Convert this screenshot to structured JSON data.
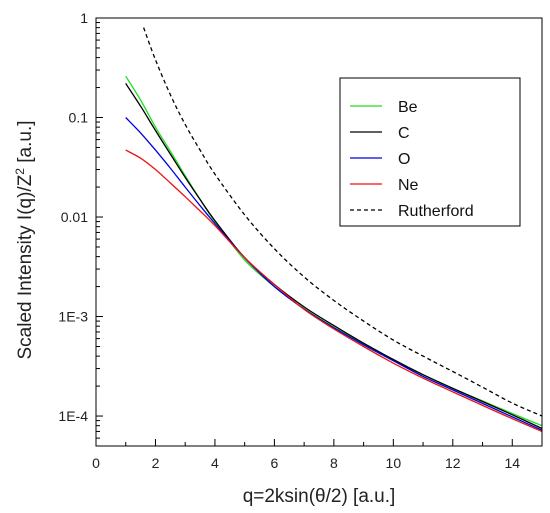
{
  "chart_data": {
    "type": "line",
    "xlabel": "q=2ksin(θ/2) [a.u.]",
    "ylabel": {
      "main": "Scaled Intensity I(q)/Z",
      "sup": "2",
      "unit": " [a.u.]"
    },
    "xscale": "linear",
    "yscale": "log",
    "xlim": [
      0,
      15
    ],
    "ylim": [
      5e-05,
      1
    ],
    "xticks": [
      0,
      2,
      4,
      6,
      8,
      10,
      12,
      14
    ],
    "xtick_labels": [
      "0",
      "2",
      "4",
      "6",
      "8",
      "10",
      "12",
      "14"
    ],
    "yticks": [
      1,
      0.1,
      0.01,
      0.001,
      0.0001
    ],
    "ytick_labels": [
      "1",
      "0.1",
      "0.01",
      "1E-3",
      "1E-4"
    ],
    "grid": false,
    "legend_position": "top-right",
    "series": [
      {
        "name": "Be",
        "color": "#22dd22",
        "dash": "solid",
        "x": [
          1,
          1.5,
          2,
          2.5,
          3,
          3.5,
          4,
          5,
          6,
          7,
          8,
          9,
          10,
          11,
          12,
          13,
          14,
          15
        ],
        "y": [
          0.26,
          0.15,
          0.08,
          0.046,
          0.026,
          0.015,
          0.009,
          0.0037,
          0.002,
          0.0012,
          0.00078,
          0.00053,
          0.00036,
          0.00026,
          0.00019,
          0.000142,
          0.000106,
          8e-05
        ]
      },
      {
        "name": "C",
        "color": "#000000",
        "dash": "solid",
        "x": [
          1,
          1.5,
          2,
          2.5,
          3,
          3.5,
          4,
          5,
          6,
          7,
          8,
          9,
          10,
          11,
          12,
          13,
          14,
          15
        ],
        "y": [
          0.22,
          0.13,
          0.074,
          0.043,
          0.025,
          0.015,
          0.0092,
          0.0039,
          0.0021,
          0.00125,
          0.00081,
          0.00054,
          0.00037,
          0.00026,
          0.00019,
          0.00014,
          0.000103,
          7.5e-05
        ]
      },
      {
        "name": "O",
        "color": "#0000dd",
        "dash": "solid",
        "x": [
          1,
          1.5,
          2,
          2.5,
          3,
          3.5,
          4,
          5,
          6,
          7,
          8,
          9,
          10,
          11,
          12,
          13,
          14,
          15
        ],
        "y": [
          0.1,
          0.07,
          0.047,
          0.031,
          0.02,
          0.013,
          0.0086,
          0.0039,
          0.002,
          0.00119,
          0.00077,
          0.00052,
          0.00036,
          0.00025,
          0.000183,
          0.000134,
          9.8e-05,
          7.2e-05
        ]
      },
      {
        "name": "Ne",
        "color": "#ee1111",
        "dash": "solid",
        "x": [
          1,
          1.5,
          2,
          2.5,
          3,
          3.5,
          4,
          5,
          6,
          7,
          8,
          9,
          10,
          11,
          12,
          13,
          14,
          15
        ],
        "y": [
          0.047,
          0.039,
          0.03,
          0.022,
          0.016,
          0.0115,
          0.0082,
          0.0039,
          0.0021,
          0.00118,
          0.00075,
          0.0005,
          0.00034,
          0.00024,
          0.000175,
          0.000128,
          9.4e-05,
          7e-05
        ]
      },
      {
        "name": "Rutherford",
        "color": "#000000",
        "dash": "dashed",
        "x": [
          1.6,
          2,
          2.5,
          3,
          3.5,
          4,
          5,
          6,
          7,
          8,
          9,
          10,
          11,
          12,
          13,
          14,
          15
        ],
        "y": [
          0.8,
          0.38,
          0.17,
          0.085,
          0.047,
          0.027,
          0.0105,
          0.0048,
          0.0025,
          0.00145,
          0.0009,
          0.00058,
          0.0004,
          0.00028,
          0.000195,
          0.000135,
          0.0001
        ]
      }
    ]
  }
}
